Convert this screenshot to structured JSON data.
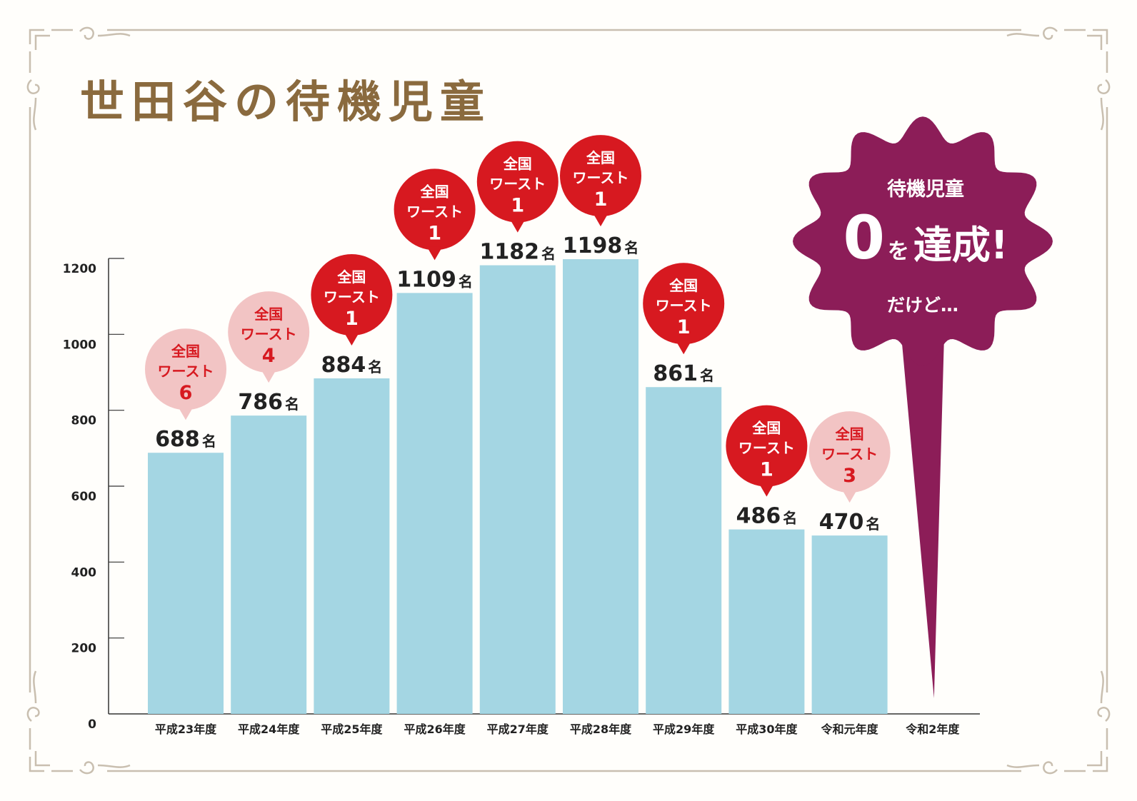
{
  "title": "世田谷の待機児童",
  "colors": {
    "bar": "#a4d6e3",
    "title": "#8a6a3e",
    "bubble_rank1": "#d71920",
    "bubble_other": "#f2c4c4",
    "bubble_other_text": "#d71920",
    "callout": "#8c1d58",
    "frame": "#c9bfb0",
    "axis": "#333333"
  },
  "chart_data": {
    "type": "bar",
    "categories": [
      "平成23年度",
      "平成24年度",
      "平成25年度",
      "平成26年度",
      "平成27年度",
      "平成28年度",
      "平成29年度",
      "平成30年度",
      "令和元年度",
      "令和2年度"
    ],
    "values": [
      688,
      786,
      884,
      1109,
      1182,
      1198,
      861,
      486,
      470,
      0
    ],
    "value_labels": [
      "688",
      "786",
      "884",
      "1109",
      "1182",
      "1198",
      "861",
      "486",
      "470",
      null
    ],
    "value_unit": "名",
    "ylim": [
      0,
      1200
    ],
    "yticks": [
      0,
      200,
      400,
      600,
      800,
      1000,
      1200
    ],
    "ytick_labels": [
      "0",
      "200",
      "400",
      "600",
      "800",
      "1000",
      "1200"
    ],
    "grid": false,
    "rank_bubble_lines": [
      "全国",
      "ワースト"
    ],
    "national_worst_rank": [
      6,
      4,
      1,
      1,
      1,
      1,
      1,
      1,
      3,
      null
    ],
    "callout": {
      "category": "令和2年度",
      "line1": "待機児童",
      "zero": "0",
      "particle": "を",
      "main": "達成!",
      "line3": "だけど…"
    }
  }
}
